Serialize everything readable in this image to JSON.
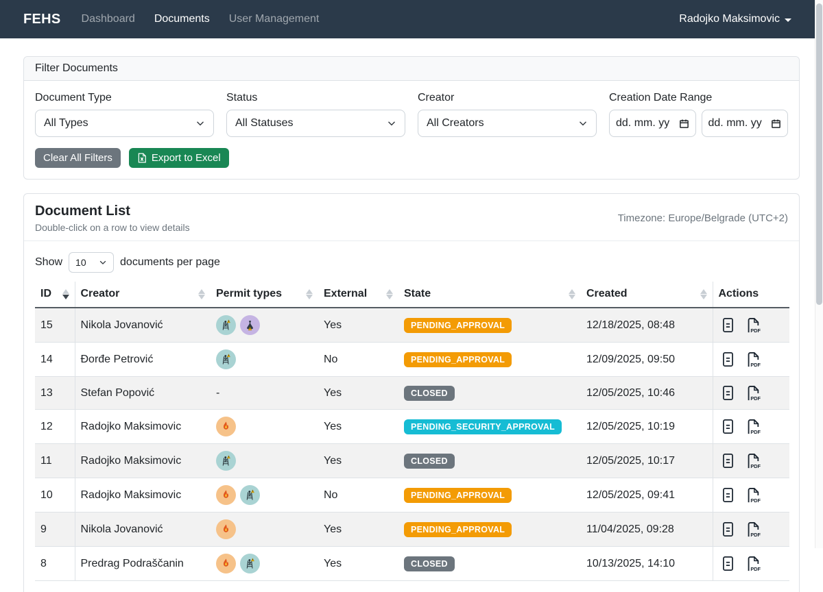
{
  "navbar": {
    "brand": "FEHS",
    "items": [
      {
        "label": "Dashboard",
        "active": false
      },
      {
        "label": "Documents",
        "active": true
      },
      {
        "label": "User Management",
        "active": false
      }
    ],
    "user": "Radojko Maksimovic"
  },
  "filter": {
    "title": "Filter Documents",
    "document_type": {
      "label": "Document Type",
      "value": "All Types"
    },
    "status": {
      "label": "Status",
      "value": "All Statuses"
    },
    "creator": {
      "label": "Creator",
      "value": "All Creators"
    },
    "date_range": {
      "label": "Creation Date Range",
      "from_placeholder": "dd. mm. yy",
      "to_placeholder": "dd. mm. yy"
    },
    "clear_button": "Clear All Filters",
    "export_button": "Export to Excel"
  },
  "document_list": {
    "title": "Document List",
    "subtitle": "Double-click on a row to view details",
    "timezone": "Timezone: Europe/Belgrade (UTC+2)",
    "show_label": "Show",
    "page_size": "10",
    "per_page_label": "documents per page",
    "no_permits_placeholder": "-",
    "columns": [
      {
        "key": "id",
        "label": "ID",
        "sortable": true,
        "sort": "desc"
      },
      {
        "key": "creator",
        "label": "Creator",
        "sortable": true,
        "sort": null
      },
      {
        "key": "permits",
        "label": "Permit types",
        "sortable": true,
        "sort": null
      },
      {
        "key": "external",
        "label": "External",
        "sortable": true,
        "sort": null
      },
      {
        "key": "state",
        "label": "State",
        "sortable": true,
        "sort": null
      },
      {
        "key": "created",
        "label": "Created",
        "sortable": true,
        "sort": null
      },
      {
        "key": "actions",
        "label": "Actions",
        "sortable": false,
        "sort": null
      }
    ],
    "rows": [
      {
        "id": "15",
        "creator": "Nikola Jovanović",
        "permits": [
          "work-at-height",
          "chemical"
        ],
        "external": "Yes",
        "state": "PENDING_APPROVAL",
        "created": "12/18/2025, 08:48"
      },
      {
        "id": "14",
        "creator": "Đorđe Petrović",
        "permits": [
          "work-at-height"
        ],
        "external": "No",
        "state": "PENDING_APPROVAL",
        "created": "12/09/2025, 09:50"
      },
      {
        "id": "13",
        "creator": "Stefan Popović",
        "permits": [],
        "external": "Yes",
        "state": "CLOSED",
        "created": "12/05/2025, 10:46"
      },
      {
        "id": "12",
        "creator": "Radojko Maksimovic",
        "permits": [
          "hot-work"
        ],
        "external": "Yes",
        "state": "PENDING_SECURITY_APPROVAL",
        "created": "12/05/2025, 10:19"
      },
      {
        "id": "11",
        "creator": "Radojko Maksimovic",
        "permits": [
          "work-at-height"
        ],
        "external": "Yes",
        "state": "CLOSED",
        "created": "12/05/2025, 10:17"
      },
      {
        "id": "10",
        "creator": "Radojko Maksimovic",
        "permits": [
          "hot-work",
          "work-at-height"
        ],
        "external": "No",
        "state": "PENDING_APPROVAL",
        "created": "12/05/2025, 09:41"
      },
      {
        "id": "9",
        "creator": "Nikola Jovanović",
        "permits": [
          "hot-work"
        ],
        "external": "Yes",
        "state": "PENDING_APPROVAL",
        "created": "11/04/2025, 09:28"
      },
      {
        "id": "8",
        "creator": "Predrag Podraščanin",
        "permits": [
          "hot-work",
          "work-at-height"
        ],
        "external": "Yes",
        "state": "CLOSED",
        "created": "10/13/2025, 14:10"
      }
    ],
    "state_colors": {
      "PENDING_APPROVAL": "#f39b05",
      "CLOSED": "#6c757d",
      "PENDING_SECURITY_APPROVAL": "#16bcd4"
    },
    "permit_icon_colors": {
      "hot-work": "#f6c289",
      "work-at-height": "#a9d3d3",
      "chemical": "#c5b4e3"
    }
  },
  "theme": {
    "navbar_bg": "#2b3a4a",
    "button_secondary": "#6c757d",
    "button_success": "#198754"
  }
}
